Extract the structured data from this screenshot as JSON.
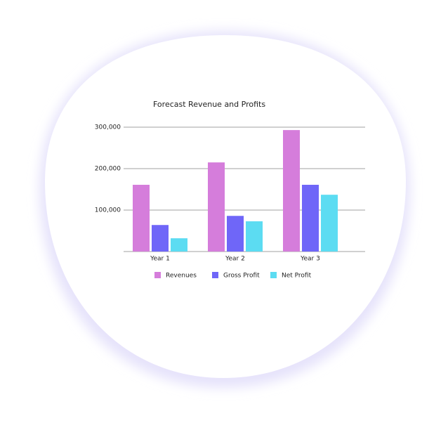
{
  "chart_data": {
    "type": "bar",
    "title": "Forecast Revenue and Profits",
    "categories": [
      "Year 1",
      "Year 2",
      "Year 3"
    ],
    "series": [
      {
        "name": "Revenues",
        "color": "#d57ddb",
        "values": [
          161000,
          215000,
          293000
        ]
      },
      {
        "name": "Gross Profit",
        "color": "#6f66f8",
        "values": [
          64000,
          86000,
          161000
        ]
      },
      {
        "name": "Net Profit",
        "color": "#5cdcf2",
        "values": [
          32000,
          73000,
          137000
        ]
      }
    ],
    "ylim": [
      0,
      300000
    ],
    "yticks": [
      {
        "value": 100000,
        "label": "100,000"
      },
      {
        "value": 200000,
        "label": "200,000"
      },
      {
        "value": 300000,
        "label": "300,000"
      }
    ],
    "grid": true
  }
}
